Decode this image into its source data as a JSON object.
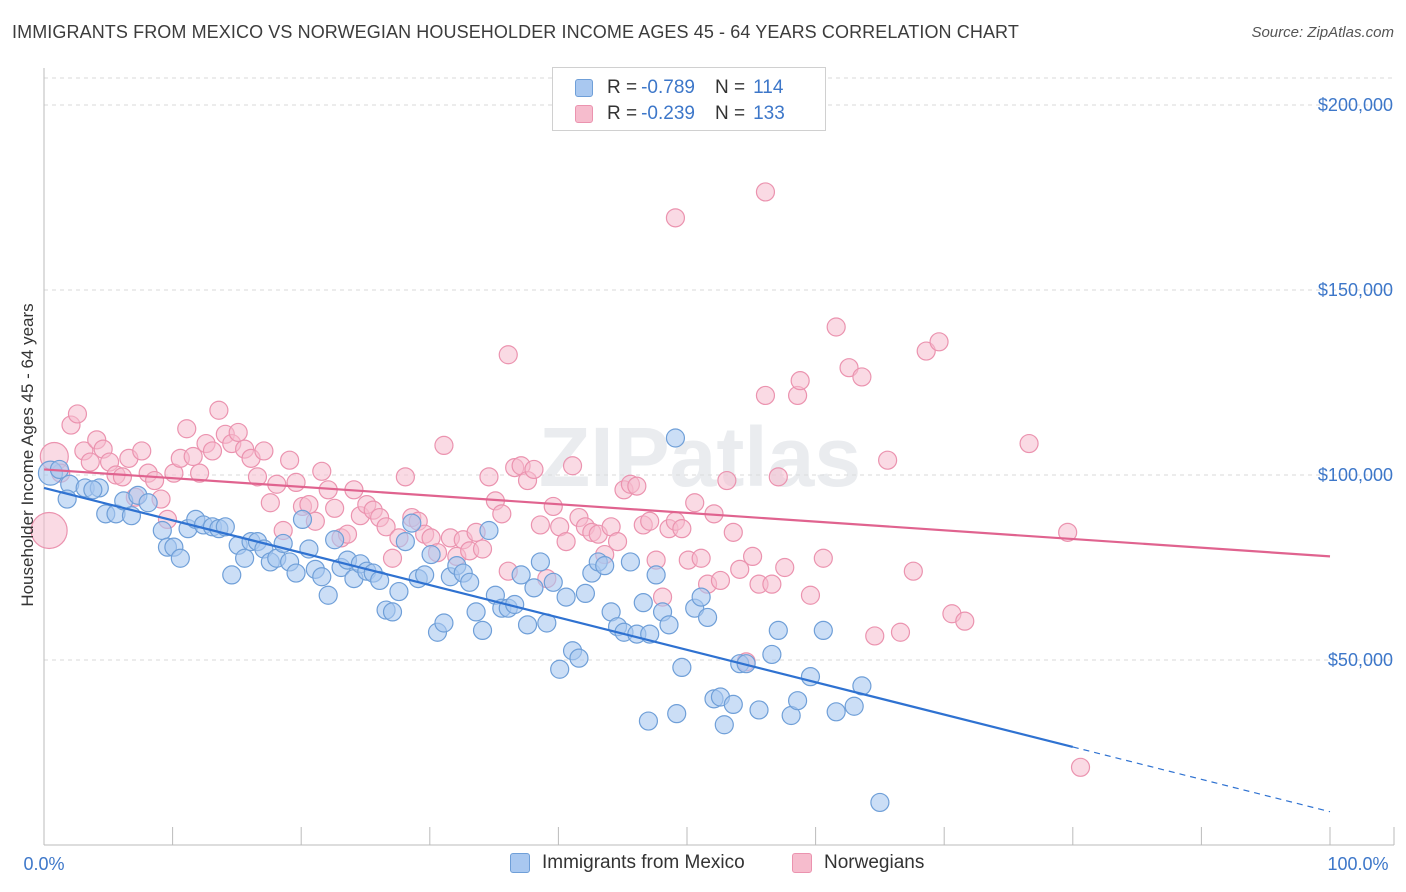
{
  "title": "IMMIGRANTS FROM MEXICO VS NORWEGIAN HOUSEHOLDER INCOME AGES 45 - 64 YEARS CORRELATION CHART",
  "source": "Source: ZipAtlas.com",
  "watermark": "ZIPatlas",
  "colors": {
    "blue_fill": "#a9c8f0",
    "blue_stroke": "#6f9fd8",
    "blue_line": "#2f72d1",
    "pink_fill": "#f6bccd",
    "pink_stroke": "#eb93af",
    "pink_line": "#e0638f",
    "tick_text": "#3d77c9",
    "grid": "#d9d9d9"
  },
  "legend": {
    "rows": [
      {
        "r_label": "R =",
        "r_value": "-0.789",
        "n_label": "N =",
        "n_value": "114"
      },
      {
        "r_label": "R =",
        "r_value": "-0.239",
        "n_label": "N =",
        "n_value": "133"
      }
    ]
  },
  "bottom_legend": [
    "Immigrants from Mexico",
    "Norwegians"
  ],
  "chart_data": {
    "type": "scatter",
    "title": "IMMIGRANTS FROM MEXICO VS NORWEGIAN HOUSEHOLDER INCOME AGES 45 - 64 YEARS CORRELATION CHART",
    "xlabel": "",
    "ylabel": "Householder Income Ages 45 - 64 years",
    "xlim": [
      0,
      100
    ],
    "ylim": [
      0,
      210000
    ],
    "x_tick_labels": [
      "0.0%",
      "100.0%"
    ],
    "y_ticks": [
      50000,
      100000,
      150000,
      200000
    ],
    "y_tick_labels": [
      "$50,000",
      "$100,000",
      "$150,000",
      "$200,000"
    ],
    "grid": "horizontal dashed",
    "legend_position": "top-center",
    "series": [
      {
        "name": "Immigrants from Mexico",
        "color": "#a9c8f0",
        "trend": {
          "x": [
            0,
            80
          ],
          "y": [
            96500,
            26500
          ],
          "dashed_extension_to": [
            100,
            9000
          ]
        },
        "points": [
          [
            0.5,
            100500
          ],
          [
            1.2,
            101500
          ],
          [
            2.0,
            97500
          ],
          [
            1.8,
            93500
          ],
          [
            3.2,
            96500
          ],
          [
            4.3,
            96500
          ],
          [
            3.8,
            96000
          ],
          [
            4.8,
            89500
          ],
          [
            5.6,
            89500
          ],
          [
            6.2,
            93000
          ],
          [
            6.8,
            89000
          ],
          [
            7.3,
            94500
          ],
          [
            8.1,
            92500
          ],
          [
            9.2,
            85000
          ],
          [
            9.6,
            80500
          ],
          [
            10.1,
            80500
          ],
          [
            10.6,
            77500
          ],
          [
            11.2,
            85500
          ],
          [
            11.8,
            88000
          ],
          [
            12.4,
            86500
          ],
          [
            13.1,
            86000
          ],
          [
            13.6,
            85500
          ],
          [
            14.1,
            86000
          ],
          [
            14.6,
            73000
          ],
          [
            15.1,
            81000
          ],
          [
            15.6,
            77500
          ],
          [
            16.1,
            82000
          ],
          [
            16.6,
            82000
          ],
          [
            17.1,
            80000
          ],
          [
            17.6,
            76500
          ],
          [
            18.1,
            77500
          ],
          [
            18.6,
            81500
          ],
          [
            19.1,
            76500
          ],
          [
            19.6,
            73500
          ],
          [
            20.1,
            88000
          ],
          [
            20.6,
            80000
          ],
          [
            21.1,
            74500
          ],
          [
            21.6,
            72500
          ],
          [
            22.1,
            67500
          ],
          [
            22.6,
            82500
          ],
          [
            23.1,
            75000
          ],
          [
            23.6,
            77000
          ],
          [
            24.1,
            72000
          ],
          [
            24.6,
            76000
          ],
          [
            25.1,
            74000
          ],
          [
            25.6,
            73500
          ],
          [
            26.1,
            71500
          ],
          [
            26.6,
            63500
          ],
          [
            27.1,
            63000
          ],
          [
            27.6,
            68500
          ],
          [
            28.1,
            82000
          ],
          [
            28.6,
            87000
          ],
          [
            29.1,
            72000
          ],
          [
            29.6,
            73000
          ],
          [
            30.1,
            78500
          ],
          [
            30.6,
            57500
          ],
          [
            31.1,
            60000
          ],
          [
            31.6,
            72500
          ],
          [
            32.1,
            75500
          ],
          [
            32.6,
            73500
          ],
          [
            33.1,
            71000
          ],
          [
            33.6,
            63000
          ],
          [
            34.1,
            58000
          ],
          [
            34.6,
            85000
          ],
          [
            35.1,
            67500
          ],
          [
            35.6,
            64000
          ],
          [
            36.1,
            64000
          ],
          [
            36.6,
            65000
          ],
          [
            37.1,
            73000
          ],
          [
            37.6,
            59500
          ],
          [
            38.1,
            69500
          ],
          [
            38.6,
            76500
          ],
          [
            39.1,
            60000
          ],
          [
            39.6,
            71000
          ],
          [
            40.1,
            47500
          ],
          [
            40.6,
            67000
          ],
          [
            41.1,
            52500
          ],
          [
            41.6,
            50500
          ],
          [
            42.1,
            68000
          ],
          [
            42.6,
            73500
          ],
          [
            43.1,
            76500
          ],
          [
            43.6,
            75500
          ],
          [
            44.1,
            63000
          ],
          [
            44.6,
            59000
          ],
          [
            45.1,
            57500
          ],
          [
            45.6,
            76500
          ],
          [
            46.1,
            57000
          ],
          [
            46.6,
            65500
          ],
          [
            47.1,
            57000
          ],
          [
            47.6,
            73000
          ],
          [
            48.1,
            63000
          ],
          [
            48.6,
            59500
          ],
          [
            49.1,
            110000
          ],
          [
            49.6,
            48000
          ],
          [
            50.6,
            64000
          ],
          [
            51.1,
            67000
          ],
          [
            51.6,
            61500
          ],
          [
            52.1,
            39500
          ],
          [
            52.6,
            40000
          ],
          [
            53.6,
            38000
          ],
          [
            54.1,
            49000
          ],
          [
            54.6,
            49000
          ],
          [
            55.6,
            36500
          ],
          [
            56.6,
            51500
          ],
          [
            57.1,
            58000
          ],
          [
            58.1,
            35000
          ],
          [
            58.6,
            39000
          ],
          [
            59.6,
            45500
          ],
          [
            60.6,
            58000
          ],
          [
            61.6,
            36000
          ],
          [
            63.6,
            43000
          ],
          [
            47.0,
            33500
          ],
          [
            52.9,
            32500
          ],
          [
            65.0,
            11500
          ],
          [
            49.2,
            35500
          ],
          [
            63.0,
            37500
          ]
        ]
      },
      {
        "name": "Norwegians",
        "color": "#f6bccd",
        "trend": {
          "x": [
            0,
            100
          ],
          "y": [
            101500,
            78000
          ]
        },
        "points": [
          [
            0.4,
            85000
          ],
          [
            0.8,
            105000
          ],
          [
            1.3,
            100500
          ],
          [
            2.1,
            113500
          ],
          [
            2.6,
            116500
          ],
          [
            3.1,
            106500
          ],
          [
            3.6,
            103500
          ],
          [
            4.1,
            109500
          ],
          [
            4.6,
            107000
          ],
          [
            5.1,
            103500
          ],
          [
            5.6,
            100000
          ],
          [
            6.1,
            99500
          ],
          [
            6.6,
            104500
          ],
          [
            7.1,
            94000
          ],
          [
            7.6,
            106500
          ],
          [
            8.1,
            100500
          ],
          [
            8.6,
            98500
          ],
          [
            9.1,
            93500
          ],
          [
            9.6,
            88000
          ],
          [
            10.1,
            100500
          ],
          [
            10.6,
            104500
          ],
          [
            11.1,
            112500
          ],
          [
            11.6,
            105000
          ],
          [
            12.1,
            100500
          ],
          [
            12.6,
            108500
          ],
          [
            13.1,
            106500
          ],
          [
            13.6,
            117500
          ],
          [
            14.1,
            111000
          ],
          [
            14.6,
            108500
          ],
          [
            15.1,
            111500
          ],
          [
            15.6,
            107000
          ],
          [
            16.1,
            104500
          ],
          [
            16.6,
            99500
          ],
          [
            17.1,
            106500
          ],
          [
            17.6,
            92500
          ],
          [
            18.1,
            97500
          ],
          [
            18.6,
            85000
          ],
          [
            19.1,
            104000
          ],
          [
            19.6,
            98000
          ],
          [
            20.1,
            91500
          ],
          [
            20.6,
            92000
          ],
          [
            21.1,
            87500
          ],
          [
            21.6,
            101000
          ],
          [
            22.1,
            96000
          ],
          [
            22.6,
            91000
          ],
          [
            23.1,
            83000
          ],
          [
            23.6,
            84000
          ],
          [
            24.1,
            96000
          ],
          [
            24.6,
            89000
          ],
          [
            25.1,
            92000
          ],
          [
            25.6,
            90500
          ],
          [
            26.1,
            88500
          ],
          [
            26.6,
            86000
          ],
          [
            27.1,
            77500
          ],
          [
            27.6,
            83000
          ],
          [
            28.1,
            99500
          ],
          [
            28.6,
            88500
          ],
          [
            29.1,
            87500
          ],
          [
            29.6,
            84000
          ],
          [
            30.1,
            83000
          ],
          [
            30.6,
            79000
          ],
          [
            31.1,
            108000
          ],
          [
            31.6,
            83000
          ],
          [
            32.1,
            78000
          ],
          [
            32.6,
            82500
          ],
          [
            33.1,
            79500
          ],
          [
            33.6,
            84500
          ],
          [
            34.1,
            80000
          ],
          [
            34.6,
            99500
          ],
          [
            35.1,
            93000
          ],
          [
            35.6,
            89500
          ],
          [
            36.1,
            74000
          ],
          [
            36.6,
            102000
          ],
          [
            37.1,
            102500
          ],
          [
            37.6,
            98500
          ],
          [
            38.1,
            101500
          ],
          [
            38.6,
            86500
          ],
          [
            39.1,
            72000
          ],
          [
            39.6,
            91500
          ],
          [
            40.1,
            86000
          ],
          [
            40.6,
            82000
          ],
          [
            41.1,
            102500
          ],
          [
            41.6,
            88500
          ],
          [
            42.1,
            86000
          ],
          [
            42.6,
            84500
          ],
          [
            43.1,
            84000
          ],
          [
            43.6,
            78500
          ],
          [
            44.1,
            86000
          ],
          [
            44.6,
            82000
          ],
          [
            45.1,
            96000
          ],
          [
            45.6,
            97500
          ],
          [
            46.1,
            97000
          ],
          [
            46.6,
            86500
          ],
          [
            47.1,
            87500
          ],
          [
            47.6,
            77000
          ],
          [
            48.1,
            67000
          ],
          [
            48.6,
            85500
          ],
          [
            49.1,
            87500
          ],
          [
            49.6,
            85500
          ],
          [
            50.1,
            77000
          ],
          [
            50.6,
            92500
          ],
          [
            51.1,
            77500
          ],
          [
            51.6,
            70500
          ],
          [
            52.1,
            89500
          ],
          [
            52.6,
            71500
          ],
          [
            53.1,
            98500
          ],
          [
            53.6,
            84500
          ],
          [
            54.1,
            74500
          ],
          [
            54.6,
            49500
          ],
          [
            55.1,
            78000
          ],
          [
            55.6,
            70500
          ],
          [
            56.1,
            121500
          ],
          [
            56.6,
            70500
          ],
          [
            57.1,
            99500
          ],
          [
            57.6,
            75000
          ],
          [
            58.6,
            121500
          ],
          [
            58.8,
            125500
          ],
          [
            59.6,
            67500
          ],
          [
            60.6,
            77500
          ],
          [
            61.6,
            140000
          ],
          [
            62.6,
            129000
          ],
          [
            63.6,
            126500
          ],
          [
            64.6,
            56500
          ],
          [
            65.6,
            104000
          ],
          [
            66.6,
            57500
          ],
          [
            67.6,
            74000
          ],
          [
            68.6,
            133500
          ],
          [
            69.6,
            136000
          ],
          [
            70.6,
            62500
          ],
          [
            71.6,
            60500
          ],
          [
            76.6,
            108500
          ],
          [
            79.6,
            84500
          ],
          [
            36.1,
            132500
          ],
          [
            49.1,
            169500
          ],
          [
            56.1,
            176500
          ],
          [
            80.6,
            21000
          ]
        ]
      }
    ]
  }
}
